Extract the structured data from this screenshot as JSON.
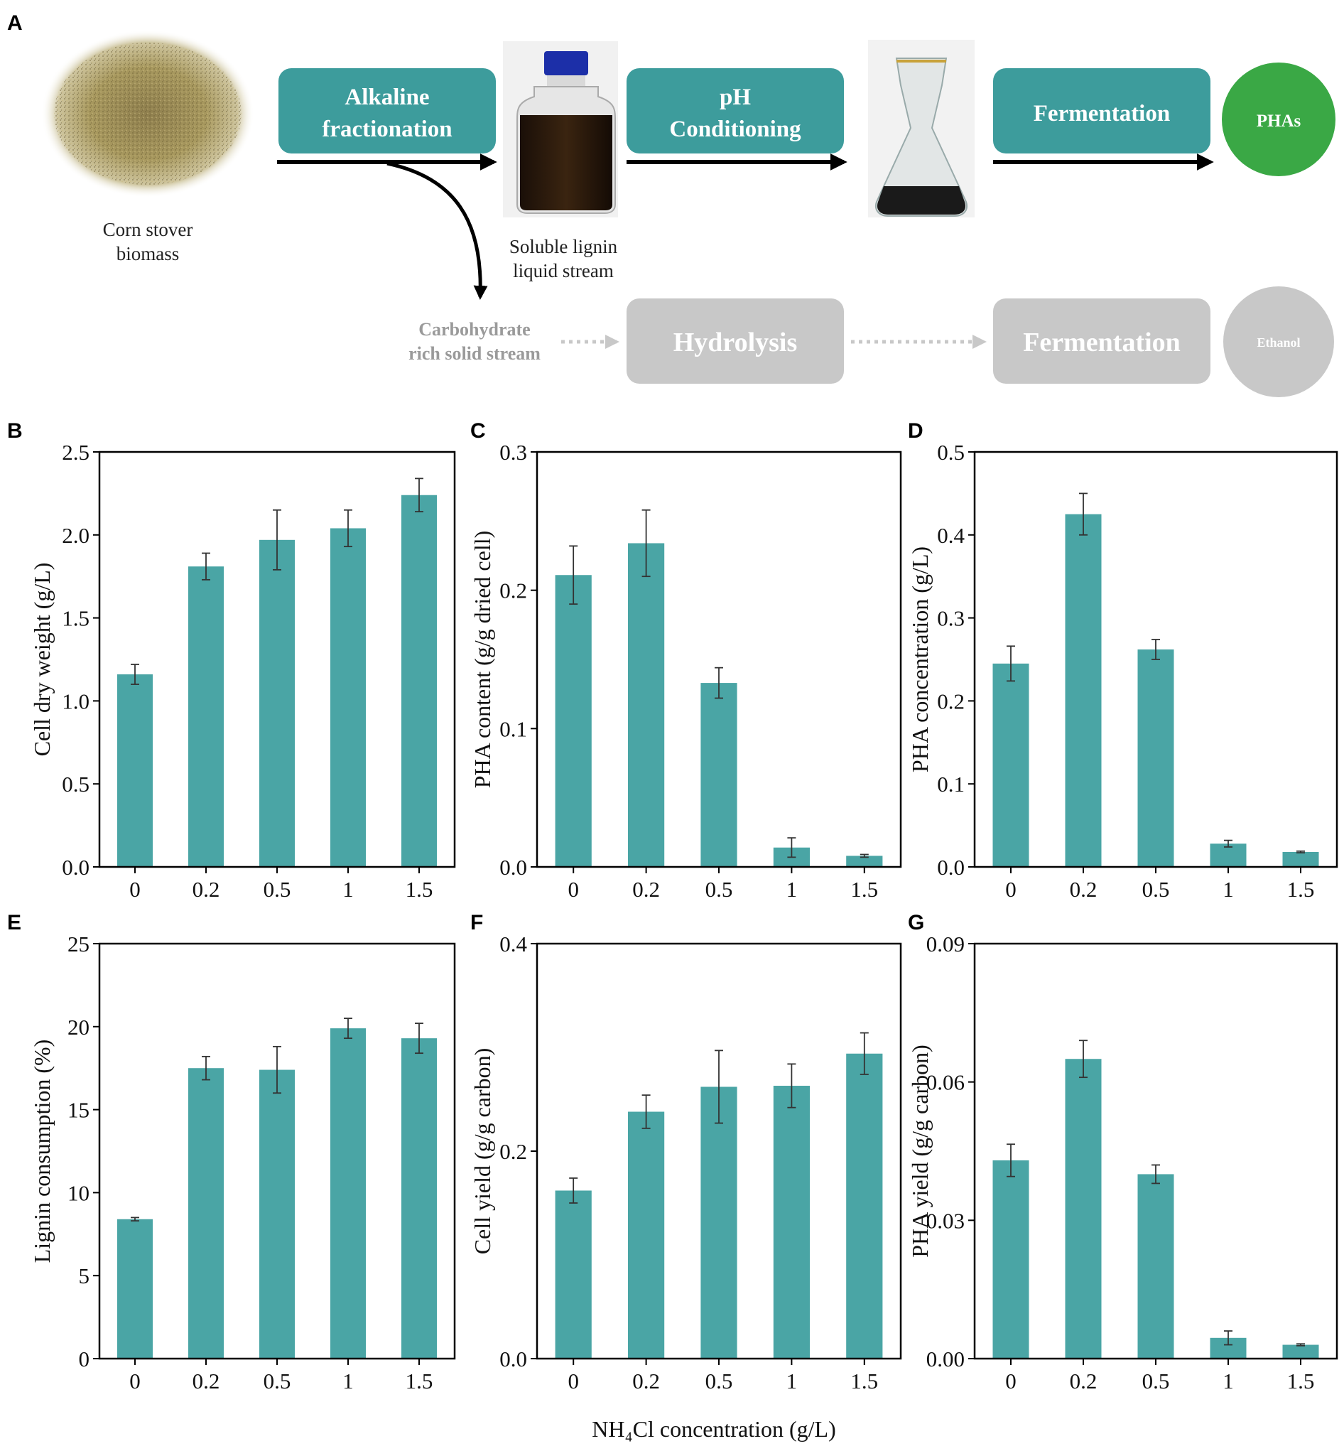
{
  "colors": {
    "bar": "#4aa5a5",
    "box_teal": "#3d9c9c",
    "pha_circle": "#3aa845",
    "grey_box": "#c8c8c8",
    "grey_text": "#9a9a9a"
  },
  "schematic": {
    "panel_label": "A",
    "biomass_caption": [
      "Corn stover",
      "biomass"
    ],
    "lignin_caption": [
      "Soluble lignin",
      "liquid stream"
    ],
    "carbohydrate_caption": [
      "Carbohydrate",
      "rich solid stream"
    ],
    "steps": {
      "alkaline": [
        "Alkaline",
        "fractionation"
      ],
      "ph": [
        "pH",
        "Conditioning"
      ],
      "fermentation_top": "Fermentation",
      "hydrolysis": "Hydrolysis",
      "fermentation_bottom": "Fermentation"
    },
    "products": {
      "phas": "PHAs",
      "ethanol": "Ethanol"
    }
  },
  "shared_xlabel": "NH₄Cl concentration (g/L)",
  "chart_data": [
    {
      "panel": "B",
      "type": "bar",
      "categories": [
        "0",
        "0.2",
        "0.5",
        "1",
        "1.5"
      ],
      "values": [
        1.16,
        1.81,
        1.97,
        2.04,
        2.24
      ],
      "errors": [
        0.06,
        0.08,
        0.18,
        0.11,
        0.1
      ],
      "ylabel": "Cell dry weight (g/L)",
      "ylim": [
        0,
        2.5
      ],
      "yticks": [
        "0.0",
        "0.5",
        "1.0",
        "1.5",
        "2.0",
        "2.5"
      ]
    },
    {
      "panel": "C",
      "type": "bar",
      "categories": [
        "0",
        "0.2",
        "0.5",
        "1",
        "1.5"
      ],
      "values": [
        0.211,
        0.234,
        0.133,
        0.014,
        0.008
      ],
      "errors": [
        0.021,
        0.024,
        0.011,
        0.007,
        0.001
      ],
      "ylabel": "PHA content (g/g dried cell)",
      "ylim": [
        0,
        0.3
      ],
      "yticks": [
        "0.0",
        "0.1",
        "0.2",
        "0.3"
      ]
    },
    {
      "panel": "D",
      "type": "bar",
      "categories": [
        "0",
        "0.2",
        "0.5",
        "1",
        "1.5"
      ],
      "values": [
        0.245,
        0.425,
        0.262,
        0.028,
        0.018
      ],
      "errors": [
        0.021,
        0.025,
        0.012,
        0.004,
        0.001
      ],
      "ylabel": "PHA concentration (g/L)",
      "ylim": [
        0,
        0.5
      ],
      "yticks": [
        "0.0",
        "0.1",
        "0.2",
        "0.3",
        "0.4",
        "0.5"
      ]
    },
    {
      "panel": "E",
      "type": "bar",
      "categories": [
        "0",
        "0.2",
        "0.5",
        "1",
        "1.5"
      ],
      "values": [
        8.4,
        17.5,
        17.4,
        19.9,
        19.3
      ],
      "errors": [
        0.1,
        0.7,
        1.4,
        0.6,
        0.9
      ],
      "ylabel": "Lignin consumption (%)",
      "ylim": [
        0,
        25
      ],
      "yticks": [
        "0",
        "5",
        "10",
        "15",
        "20",
        "25"
      ]
    },
    {
      "panel": "F",
      "type": "bar",
      "categories": [
        "0",
        "0.2",
        "0.5",
        "1",
        "1.5"
      ],
      "values": [
        0.162,
        0.238,
        0.262,
        0.263,
        0.294
      ],
      "errors": [
        0.012,
        0.016,
        0.035,
        0.021,
        0.02
      ],
      "ylabel": "Cell yield (g/g carbon)",
      "ylim": [
        0,
        0.4
      ],
      "yticks": [
        "0.0",
        "0.2",
        "0.4"
      ]
    },
    {
      "panel": "G",
      "type": "bar",
      "categories": [
        "0",
        "0.2",
        "0.5",
        "1",
        "1.5"
      ],
      "values": [
        0.043,
        0.065,
        0.04,
        0.0045,
        0.003
      ],
      "errors": [
        0.0035,
        0.004,
        0.002,
        0.0015,
        0.0002
      ],
      "ylabel": "PHA yield (g/g carbon)",
      "ylim": [
        0,
        0.09
      ],
      "yticks": [
        "0.00",
        "0.03",
        "0.06",
        "0.09"
      ]
    }
  ]
}
